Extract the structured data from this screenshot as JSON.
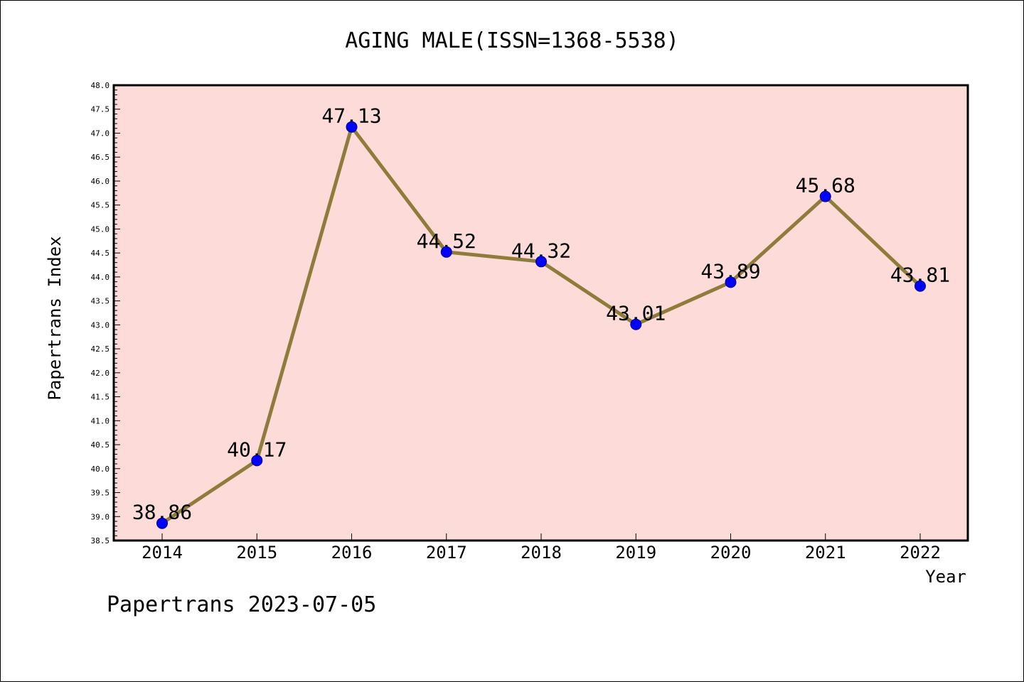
{
  "colors": {
    "plot_background": "#fddbd8",
    "line": "#8f7b3a",
    "marker": "#0000ff"
  },
  "footer": "Papertrans 2023-07-05",
  "chart_data": {
    "type": "line",
    "title": "AGING MALE(ISSN=1368-5538)",
    "xlabel": "Year",
    "ylabel": "Papertrans Index",
    "categories": [
      "2014",
      "2015",
      "2016",
      "2017",
      "2018",
      "2019",
      "2020",
      "2021",
      "2022"
    ],
    "series": [
      {
        "values": [
          38.86,
          40.17,
          47.13,
          44.52,
          44.32,
          43.01,
          43.89,
          45.68,
          43.81
        ],
        "labels": [
          "38.86",
          "40.17",
          "47.13",
          "44.52",
          "44.32",
          "43.01",
          "43.89",
          "45.68",
          "43.81"
        ]
      }
    ],
    "ylim": [
      38.5,
      48.0
    ],
    "yticks": [
      "38.5",
      "39.0",
      "39.5",
      "40.0",
      "40.5",
      "41.0",
      "41.5",
      "42.0",
      "42.5",
      "43.0",
      "43.5",
      "44.0",
      "44.5",
      "45.0",
      "45.5",
      "46.0",
      "46.5",
      "47.0",
      "47.5",
      "48.0"
    ],
    "grid": false,
    "markers": true
  }
}
